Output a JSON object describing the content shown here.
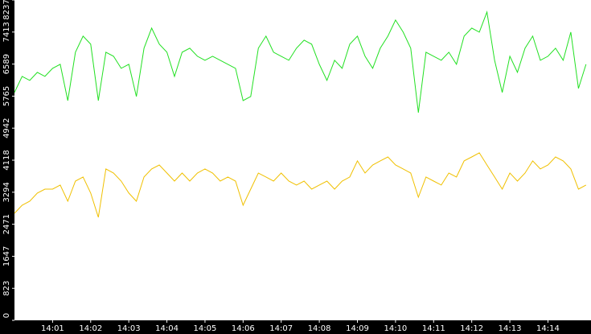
{
  "chart_data": {
    "type": "line",
    "x": [
      840,
      840.2,
      840.4,
      840.6,
      840.8,
      841,
      841.2,
      841.4,
      841.6,
      841.8,
      842,
      842.2,
      842.4,
      842.6,
      842.8,
      843,
      843.2,
      843.4,
      843.6,
      843.8,
      844,
      844.2,
      844.4,
      844.6,
      844.8,
      845,
      845.2,
      845.4,
      845.6,
      845.8,
      846,
      846.2,
      846.4,
      846.6,
      846.8,
      847,
      847.2,
      847.4,
      847.6,
      847.8,
      848,
      848.2,
      848.4,
      848.6,
      848.8,
      849,
      849.2,
      849.4,
      849.6,
      849.8,
      850,
      850.2,
      850.4,
      850.6,
      850.8,
      851,
      851.2,
      851.4,
      851.6,
      851.8,
      852,
      852.2,
      852.4,
      852.6,
      852.8,
      853,
      853.2,
      853.4,
      853.6,
      853.8,
      854,
      854.2,
      854.4,
      854.6,
      854.8,
      855
    ],
    "series": [
      {
        "name": "green",
        "color": "#22e022",
        "values": [
          5858,
          6272,
          6169,
          6376,
          6272,
          6479,
          6583,
          5651,
          6893,
          7307,
          7100,
          5651,
          6893,
          6790,
          6479,
          6583,
          5755,
          6997,
          7514,
          7100,
          6893,
          6272,
          6893,
          6997,
          6790,
          6686,
          6790,
          6686,
          6583,
          6479,
          5651,
          5755,
          6997,
          7307,
          6893,
          6790,
          6686,
          6997,
          7204,
          7100,
          6583,
          6169,
          6686,
          6479,
          7100,
          7307,
          6790,
          6479,
          6997,
          7307,
          7721,
          7411,
          6997,
          5341,
          6893,
          6790,
          6686,
          6893,
          6583,
          7307,
          7514,
          7411,
          7928,
          6686,
          5858,
          6790,
          6376,
          6997,
          7307,
          6686,
          6790,
          6997,
          6686,
          7411,
          5962,
          6583
        ]
      },
      {
        "name": "yellow",
        "color": "#f0c000",
        "values": [
          2753,
          2960,
          3064,
          3271,
          3374,
          3374,
          3478,
          3064,
          3581,
          3685,
          3271,
          2650,
          3892,
          3788,
          3581,
          3271,
          3064,
          3685,
          3892,
          3995,
          3788,
          3581,
          3788,
          3581,
          3788,
          3892,
          3788,
          3581,
          3685,
          3581,
          2960,
          3374,
          3788,
          3685,
          3581,
          3788,
          3581,
          3478,
          3581,
          3374,
          3478,
          3581,
          3374,
          3581,
          3685,
          4099,
          3788,
          3995,
          4099,
          4202,
          3995,
          3892,
          3788,
          3167,
          3685,
          3581,
          3478,
          3788,
          3685,
          4099,
          4202,
          4306,
          3995,
          3685,
          3374,
          3788,
          3581,
          3788,
          4099,
          3892,
          3995,
          4202,
          4099,
          3892,
          3374,
          3478
        ]
      }
    ],
    "xlim": [
      840,
      855.13
    ],
    "xticks": [
      {
        "value": 841,
        "label": "14:01"
      },
      {
        "value": 842,
        "label": "14:02"
      },
      {
        "value": 843,
        "label": "14:03"
      },
      {
        "value": 844,
        "label": "14:04"
      },
      {
        "value": 845,
        "label": "14:05"
      },
      {
        "value": 846,
        "label": "14:06"
      },
      {
        "value": 847,
        "label": "14:07"
      },
      {
        "value": 848,
        "label": "14:08"
      },
      {
        "value": 849,
        "label": "14:09"
      },
      {
        "value": 850,
        "label": "14:10"
      },
      {
        "value": 851,
        "label": "14:11"
      },
      {
        "value": 852,
        "label": "14:12"
      },
      {
        "value": 853,
        "label": "14:13"
      },
      {
        "value": 854,
        "label": "14:14"
      }
    ],
    "ylim": [
      0,
      8237
    ],
    "yticks": [
      0,
      823,
      1647,
      2471,
      3294,
      4118,
      4942,
      5765,
      6589,
      7413,
      8237
    ]
  }
}
